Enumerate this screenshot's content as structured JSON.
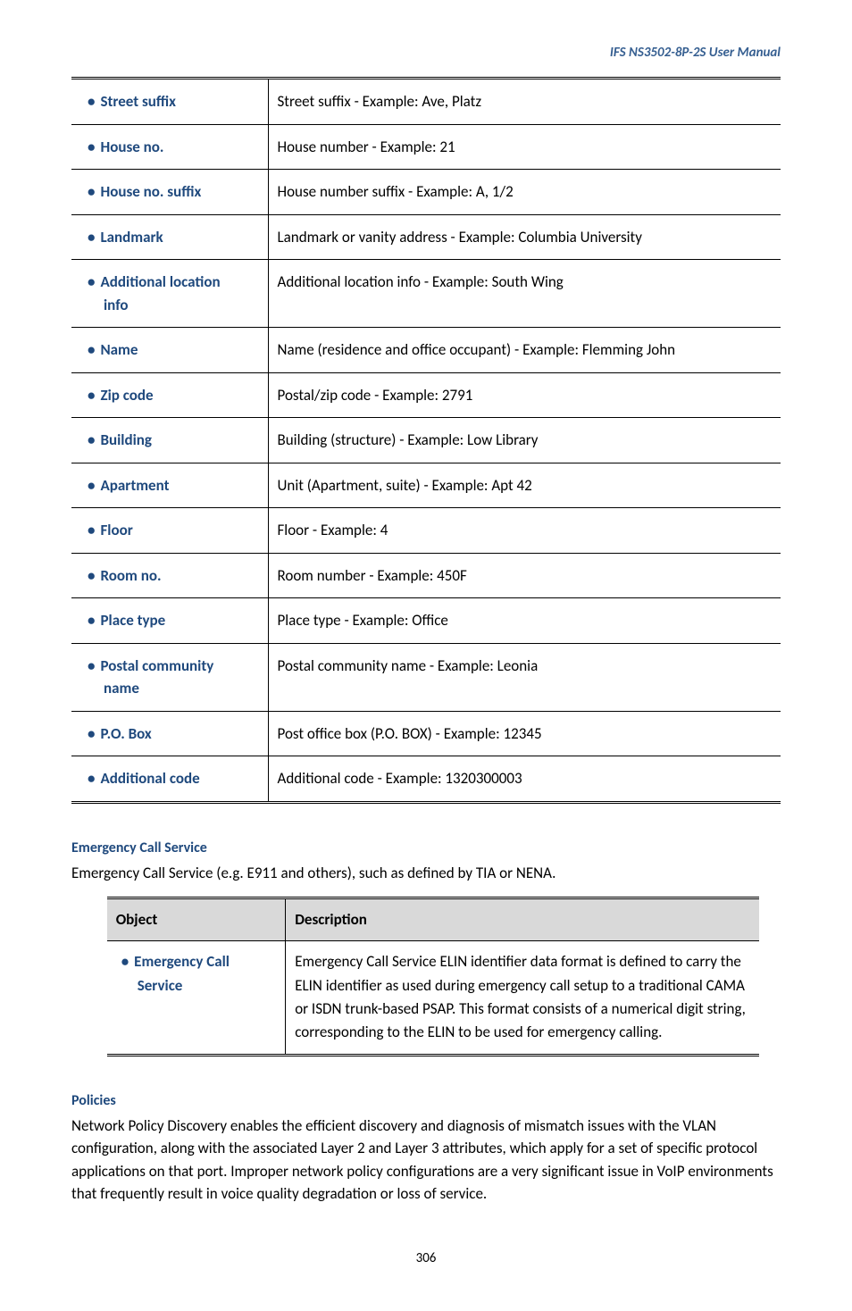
{
  "header": {
    "product": "IFS  NS3502-8P-2S  User  Manual"
  },
  "table1": {
    "rows": [
      {
        "key": "Street suffix",
        "val": "Street suffix - Example: Ave, Platz",
        "multiline": false
      },
      {
        "key": "House no.",
        "val": "House number - Example: 21",
        "multiline": false
      },
      {
        "key": "House no. suffix",
        "val": "House number suffix - Example: A, 1/2",
        "multiline": false
      },
      {
        "key": "Landmark",
        "val": "Landmark or vanity address - Example: Columbia University",
        "multiline": false
      },
      {
        "key": "Additional location info",
        "val": "Additional location info - Example: South Wing",
        "multiline": true
      },
      {
        "key": "Name",
        "val": "Name (residence and office occupant) - Example: Flemming John",
        "multiline": false
      },
      {
        "key": "Zip code",
        "val": "Postal/zip code - Example: 2791",
        "multiline": false
      },
      {
        "key": "Building",
        "val": "Building (structure) - Example: Low Library",
        "multiline": false
      },
      {
        "key": "Apartment",
        "val": "Unit (Apartment, suite) - Example: Apt 42",
        "multiline": false
      },
      {
        "key": "Floor",
        "val": "Floor - Example: 4",
        "multiline": false
      },
      {
        "key": "Room no.",
        "val": "Room number - Example: 450F",
        "multiline": false
      },
      {
        "key": "Place type",
        "val": "Place type - Example: Office",
        "multiline": false
      },
      {
        "key": "Postal community name",
        "val": "Postal community name - Example: Leonia",
        "multiline": true
      },
      {
        "key": "P.O. Box",
        "val": "Post office box (P.O. BOX) - Example: 12345",
        "multiline": false
      },
      {
        "key": "Additional code",
        "val": "Additional code - Example: 1320300003",
        "multiline": false
      }
    ]
  },
  "emergency": {
    "heading": "Emergency Call Service",
    "intro": "Emergency Call Service (e.g. E911 and others), such as defined by TIA or NENA.",
    "th_object": "Object",
    "th_desc": "Description",
    "obj_line1": "Emergency Call",
    "obj_line2": "Service",
    "desc": "Emergency Call Service ELIN identifier data format is defined to carry the ELIN identifier as used during emergency call setup to a traditional CAMA or ISDN trunk-based PSAP. This format consists of a numerical digit string, corresponding to the ELIN to be used for emergency calling."
  },
  "policies": {
    "heading": "Policies",
    "body": "Network Policy Discovery enables the efficient discovery and diagnosis of mismatch issues with the VLAN configuration, along with the associated Layer 2 and Layer 3 attributes, which apply for a set of specific protocol applications on that port. Improper network policy configurations are a very significant issue in VoIP environments that frequently result in voice quality degradation or loss of service."
  },
  "page_number": "306",
  "colors": {
    "blue": "#1f497d",
    "header_blue": "#365f91",
    "th_bg": "#d9d9d9"
  }
}
